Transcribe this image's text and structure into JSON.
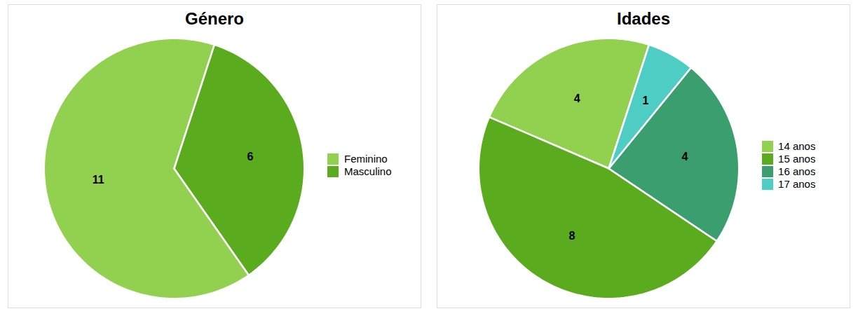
{
  "chart_data": [
    {
      "type": "pie",
      "title": "Género",
      "categories": [
        "Feminino",
        "Masculino"
      ],
      "values": [
        11,
        6
      ],
      "colors": [
        "#92d050",
        "#5aab1e"
      ],
      "data_labels": true,
      "legend": "right"
    },
    {
      "type": "pie",
      "title": "Idades",
      "categories": [
        "14 anos",
        "15 anos",
        "16 anos",
        "17 anos"
      ],
      "values": [
        4,
        8,
        4,
        1
      ],
      "colors": [
        "#92d050",
        "#5aab1e",
        "#3a9e6e",
        "#4ecdc4"
      ],
      "data_labels": true,
      "legend": "right"
    }
  ]
}
